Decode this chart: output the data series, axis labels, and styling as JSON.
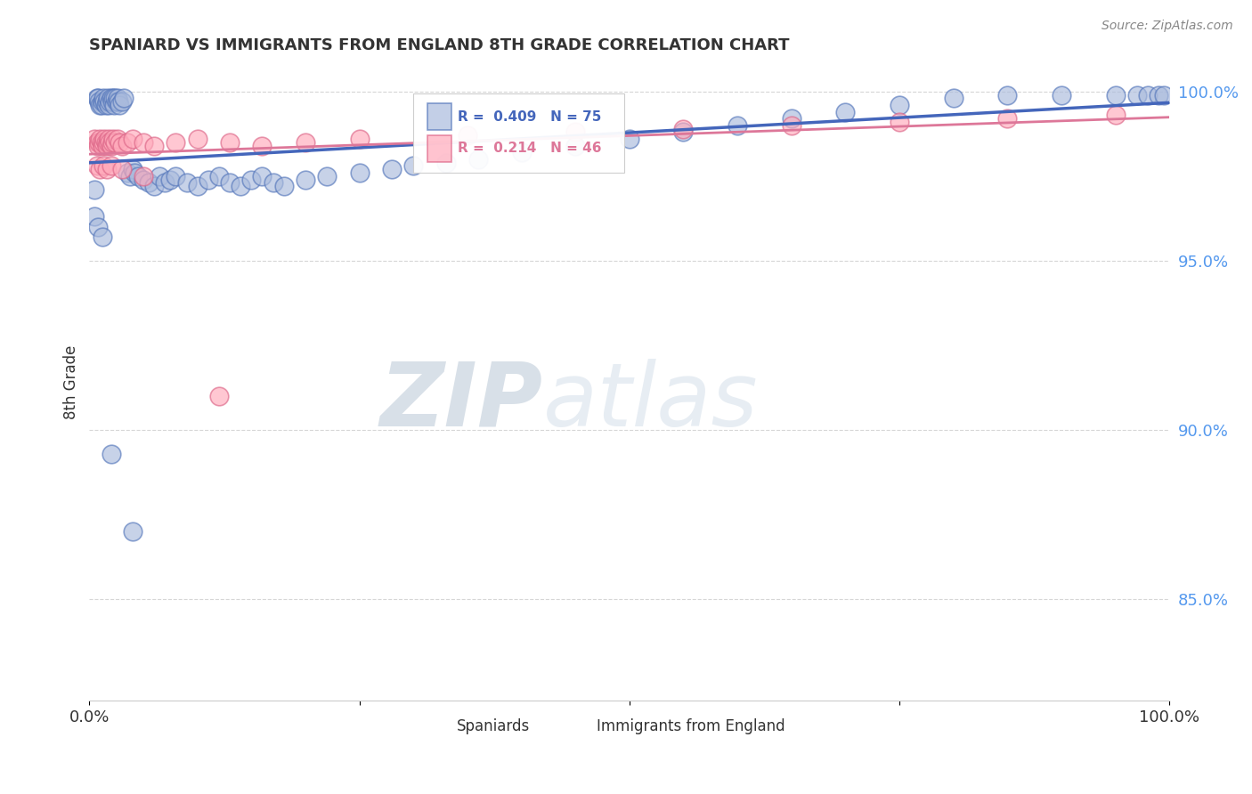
{
  "title": "SPANIARD VS IMMIGRANTS FROM ENGLAND 8TH GRADE CORRELATION CHART",
  "source_text": "Source: ZipAtlas.com",
  "ylabel": "8th Grade",
  "xlim": [
    0.0,
    1.0
  ],
  "ylim": [
    0.82,
    1.008
  ],
  "x_ticks": [
    0.0,
    0.25,
    0.5,
    0.75,
    1.0
  ],
  "x_tick_labels": [
    "0.0%",
    "",
    "",
    "",
    "100.0%"
  ],
  "y_ticks": [
    0.85,
    0.9,
    0.95,
    1.0
  ],
  "y_tick_labels": [
    "85.0%",
    "90.0%",
    "95.0%",
    "100.0%"
  ],
  "legend_r_blue": "R =  0.409",
  "legend_n_blue": "N = 75",
  "legend_r_pink": "R =  0.214",
  "legend_n_pink": "N = 46",
  "blue_fill": "#AABBDD",
  "blue_edge": "#5577BB",
  "pink_fill": "#FFAABB",
  "pink_edge": "#DD6688",
  "blue_line": "#4466BB",
  "pink_line": "#DD7799",
  "wm_zip_color": "#AABBCC",
  "wm_atlas_color": "#BBCCDD",
  "ytick_color": "#5599EE",
  "grid_color": "#CCCCCC",
  "title_fontsize": 13,
  "source_fontsize": 10,
  "spaniards_x": [
    0.005,
    0.007,
    0.008,
    0.009,
    0.01,
    0.011,
    0.012,
    0.013,
    0.014,
    0.015,
    0.016,
    0.017,
    0.018,
    0.019,
    0.02,
    0.021,
    0.022,
    0.023,
    0.024,
    0.025,
    0.026,
    0.027,
    0.028,
    0.03,
    0.032,
    0.035,
    0.038,
    0.04,
    0.042,
    0.045,
    0.05,
    0.055,
    0.06,
    0.065,
    0.07,
    0.075,
    0.08,
    0.09,
    0.1,
    0.11,
    0.12,
    0.13,
    0.14,
    0.15,
    0.16,
    0.17,
    0.18,
    0.2,
    0.22,
    0.25,
    0.28,
    0.3,
    0.33,
    0.36,
    0.4,
    0.45,
    0.5,
    0.55,
    0.6,
    0.65,
    0.7,
    0.75,
    0.8,
    0.85,
    0.9,
    0.95,
    0.97,
    0.98,
    0.99,
    0.995,
    0.005,
    0.008,
    0.012,
    0.02,
    0.04
  ],
  "spaniards_y": [
    0.971,
    0.998,
    0.998,
    0.997,
    0.996,
    0.996,
    0.997,
    0.998,
    0.997,
    0.996,
    0.997,
    0.998,
    0.996,
    0.997,
    0.998,
    0.997,
    0.998,
    0.996,
    0.998,
    0.997,
    0.998,
    0.997,
    0.996,
    0.997,
    0.998,
    0.976,
    0.975,
    0.977,
    0.976,
    0.975,
    0.974,
    0.973,
    0.972,
    0.975,
    0.973,
    0.974,
    0.975,
    0.973,
    0.972,
    0.974,
    0.975,
    0.973,
    0.972,
    0.974,
    0.975,
    0.973,
    0.972,
    0.974,
    0.975,
    0.976,
    0.977,
    0.978,
    0.979,
    0.98,
    0.982,
    0.984,
    0.986,
    0.988,
    0.99,
    0.992,
    0.994,
    0.996,
    0.998,
    0.999,
    0.999,
    0.999,
    0.999,
    0.999,
    0.999,
    0.999,
    0.963,
    0.96,
    0.957,
    0.893,
    0.87
  ],
  "england_x": [
    0.005,
    0.007,
    0.008,
    0.009,
    0.01,
    0.011,
    0.012,
    0.013,
    0.014,
    0.015,
    0.016,
    0.017,
    0.018,
    0.019,
    0.02,
    0.021,
    0.022,
    0.024,
    0.026,
    0.028,
    0.03,
    0.035,
    0.04,
    0.05,
    0.06,
    0.08,
    0.1,
    0.13,
    0.16,
    0.2,
    0.25,
    0.35,
    0.45,
    0.55,
    0.65,
    0.75,
    0.85,
    0.95,
    0.007,
    0.01,
    0.013,
    0.016,
    0.02,
    0.03,
    0.05,
    0.12
  ],
  "england_y": [
    0.986,
    0.985,
    0.984,
    0.985,
    0.986,
    0.985,
    0.984,
    0.985,
    0.986,
    0.985,
    0.984,
    0.985,
    0.986,
    0.985,
    0.984,
    0.985,
    0.986,
    0.985,
    0.986,
    0.985,
    0.984,
    0.985,
    0.986,
    0.985,
    0.984,
    0.985,
    0.986,
    0.985,
    0.984,
    0.985,
    0.986,
    0.987,
    0.988,
    0.989,
    0.99,
    0.991,
    0.992,
    0.993,
    0.978,
    0.977,
    0.978,
    0.977,
    0.978,
    0.977,
    0.975,
    0.91
  ]
}
